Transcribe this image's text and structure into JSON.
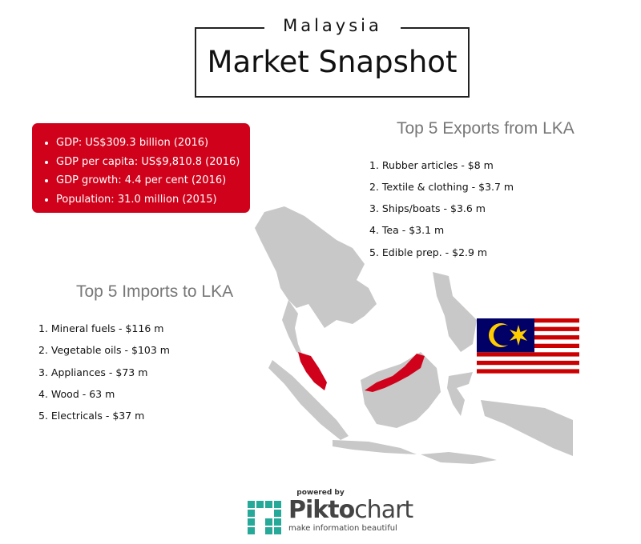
{
  "header": {
    "subtitle": "Malaysia",
    "title": "Market Snapshot"
  },
  "stats": [
    "GDP: US$309.3 billion (2016)",
    "GDP per capita: US$9,810.8 (2016)",
    "GDP growth: 4.4 per cent (2016)",
    "Population: 31.0 million (2015)"
  ],
  "exports": {
    "heading": "Top 5 Exports from LKA",
    "items": [
      {
        "label": "1. Rubber articles - $8 m",
        "value_musd": 8
      },
      {
        "label": "2. Textile & clothing - $3.7 m",
        "value_musd": 3.7
      },
      {
        "label": "3. Ships/boats - $3.6 m",
        "value_musd": 3.6
      },
      {
        "label": "4. Tea - $3.1 m",
        "value_musd": 3.1
      },
      {
        "label": "5. Edible prep. - $2.9 m",
        "value_musd": 2.9
      }
    ]
  },
  "imports": {
    "heading": "Top 5 Imports to LKA",
    "items": [
      {
        "label": "1. Mineral fuels - $116 m",
        "value_musd": 116
      },
      {
        "label": "2. Vegetable oils - $103 m",
        "value_musd": 103
      },
      {
        "label": "3. Appliances - $73 m",
        "value_musd": 73
      },
      {
        "label": "4. Wood - 63 m",
        "value_musd": 63
      },
      {
        "label": "5. Electricals - $37 m",
        "value_musd": 37
      }
    ]
  },
  "footer": {
    "powered": "powered by",
    "brand_a": "Pikto",
    "brand_b": "chart",
    "tagline": "make information beautiful"
  },
  "colors": {
    "stats_bg": "#d0021b",
    "bar": "#4a8ad8",
    "map_land": "#c8c8c8",
    "highlight": "#d0021b",
    "brand": "#27a99a"
  }
}
